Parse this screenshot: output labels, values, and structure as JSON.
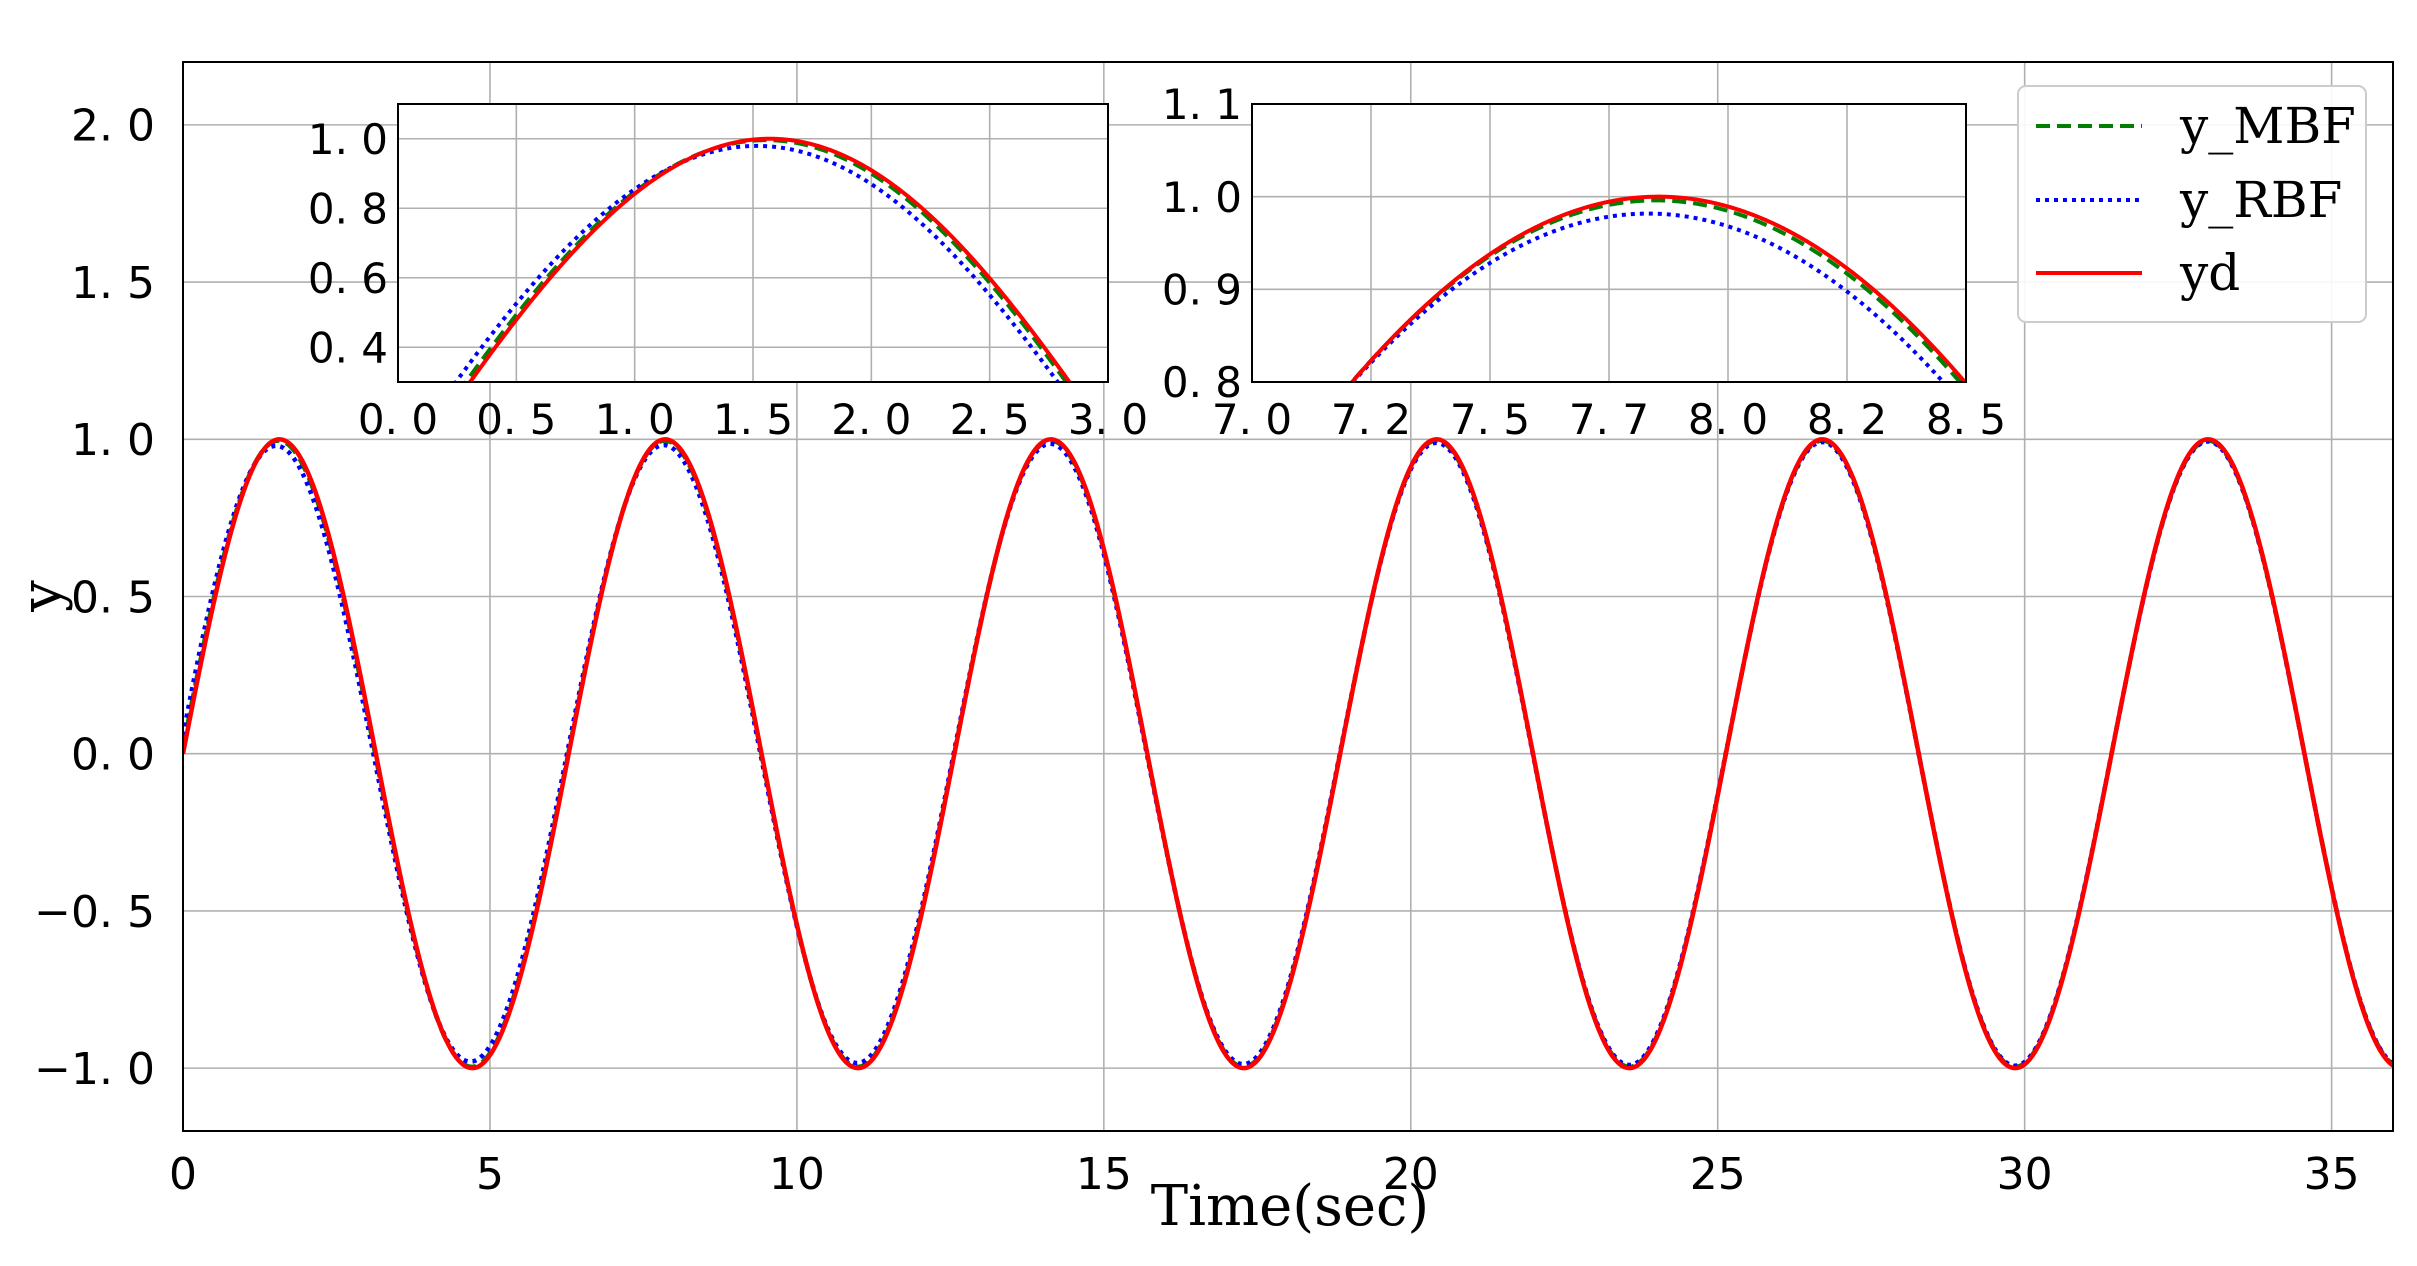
{
  "chart_data": [
    {
      "type": "line",
      "role": "main",
      "title": "",
      "xlabel": "Time(sec)",
      "ylabel": "y",
      "xlim": [
        0,
        36
      ],
      "ylim": [
        -1.2,
        2.2
      ],
      "xticks": [
        0,
        5,
        10,
        15,
        20,
        25,
        30,
        35
      ],
      "xtick_labels": [
        "0",
        "5",
        "10",
        "15",
        "20",
        "25",
        "30",
        "35"
      ],
      "yticks": [
        -1.0,
        -0.5,
        0.0,
        0.5,
        1.0,
        1.5,
        2.0
      ],
      "ytick_labels": [
        "−1. 0",
        "−0. 5",
        "0. 0",
        "0. 5",
        "1. 0",
        "1. 5",
        "2. 0"
      ],
      "grid": true,
      "legend_position": "top-right",
      "signal": "y = sin(t); y_MBF and y_RBF track yd with small transient errors",
      "x": [
        0,
        1.571,
        3.142,
        4.712,
        6.283,
        7.854,
        9.425,
        10.996,
        12.566,
        14.137,
        15.708,
        17.279,
        18.85,
        20.42,
        21.991,
        23.562,
        25.133,
        26.704,
        28.274,
        29.845,
        31.416,
        32.987,
        34.558,
        36.0
      ],
      "series": [
        {
          "name": "y_MBF",
          "color": "#007f00",
          "dash": "dashed",
          "values": [
            0.0,
            0.998,
            0.0,
            -1.0,
            0.0,
            0.996,
            0.0,
            -1.0,
            0.0,
            0.997,
            0.0,
            -1.0,
            0.0,
            0.999,
            0.0,
            -0.99,
            0.0,
            1.0,
            0.0,
            -1.0,
            0.0,
            1.0,
            0.0,
            -0.99
          ]
        },
        {
          "name": "y_RBF",
          "color": "#0000ff",
          "dash": "dotted",
          "values": [
            0.0,
            0.975,
            0.0,
            -1.02,
            0.0,
            0.975,
            0.0,
            -1.01,
            0.0,
            0.98,
            0.0,
            -1.01,
            0.0,
            0.985,
            0.0,
            -1.0,
            0.0,
            0.99,
            0.0,
            -1.0,
            0.0,
            0.99,
            0.0,
            -0.99
          ]
        },
        {
          "name": "yd",
          "color": "#ff0000",
          "dash": "solid",
          "values": [
            0.0,
            1.0,
            0.0,
            -1.0,
            0.0,
            1.0,
            0.0,
            -1.0,
            0.0,
            1.0,
            0.0,
            -1.0,
            0.0,
            1.0,
            0.0,
            -1.0,
            0.0,
            1.0,
            0.0,
            -1.0,
            0.0,
            1.0,
            0.0,
            -0.99
          ]
        }
      ]
    },
    {
      "type": "line",
      "role": "inset-left",
      "xlim": [
        0.0,
        3.0
      ],
      "ylim": [
        0.3,
        1.1
      ],
      "xticks": [
        0.0,
        0.5,
        1.0,
        1.5,
        2.0,
        2.5,
        3.0
      ],
      "xtick_labels": [
        "0. 0",
        "0. 5",
        "1. 0",
        "1. 5",
        "2. 0",
        "2. 5",
        "3. 0"
      ],
      "yticks": [
        0.4,
        0.6,
        0.8,
        1.0
      ],
      "ytick_labels": [
        "0. 4",
        "0. 6",
        "0. 8",
        "1. 0"
      ],
      "grid": true,
      "peaks": {
        "y_MBF": 0.99,
        "y_RBF": 0.975,
        "yd": 1.0
      }
    },
    {
      "type": "line",
      "role": "inset-right",
      "xlim": [
        7.0,
        8.5
      ],
      "ylim": [
        0.8,
        1.1
      ],
      "xticks": [
        7.0,
        7.25,
        7.5,
        7.75,
        8.0,
        8.25,
        8.5
      ],
      "xtick_labels": [
        "7. 0",
        "7. 2",
        "7. 5",
        "7. 7",
        "8. 0",
        "8. 2",
        "8. 5"
      ],
      "yticks": [
        0.8,
        0.9,
        1.0,
        1.1
      ],
      "ytick_labels": [
        "0. 8",
        "0. 9",
        "1. 0",
        "1. 1"
      ],
      "grid": true,
      "peaks": {
        "y_MBF": 0.995,
        "y_RBF": 0.975,
        "yd": 1.0
      }
    }
  ],
  "legend": {
    "items": [
      {
        "label": "y_MBF",
        "color": "#007f00",
        "dash": "dashed"
      },
      {
        "label": "y_RBF",
        "color": "#0000ff",
        "dash": "dotted"
      },
      {
        "label": "yd",
        "color": "#ff0000",
        "dash": "solid"
      }
    ]
  }
}
